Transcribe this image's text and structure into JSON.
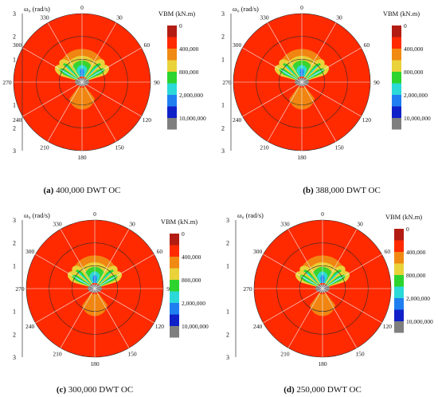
{
  "colors": {
    "band_0": "#b31c12",
    "band_1": "#ff2a00",
    "band_2": "#f08a12",
    "band_3": "#e9d23a",
    "band_4": "#2ed42e",
    "band_5": "#2bd9d9",
    "band_6": "#1f7ff0",
    "band_7": "#1020c8",
    "band_8": "#7f7f7f",
    "ring": "#2a2a2a",
    "spoke": "#f0f0f0"
  },
  "chart_data": [
    {
      "type": "heatmap",
      "subtype": "polar-contour",
      "panel_label": "(a)",
      "title": "400,000 DWT OC",
      "radial_axis_label": "ω₀ (rad/s)",
      "radial_ticks": [
        "1",
        "2",
        "3"
      ],
      "angle_ticks": [
        "0",
        "30",
        "60",
        "90",
        "120",
        "150",
        "180",
        "210",
        "240",
        "270",
        "300",
        "330"
      ],
      "legend_title": "VBM (kN.m)",
      "legend_labels": [
        "0",
        "400,000",
        "800,000",
        "2,000,000",
        "10,000,000"
      ],
      "max_region": {
        "heading_deg": 0,
        "omega_rad_s": [
          0.3,
          1.0
        ]
      }
    },
    {
      "type": "heatmap",
      "subtype": "polar-contour",
      "panel_label": "(b)",
      "title": "388,000 DWT OC",
      "radial_axis_label": "ω₀ (rad/s)",
      "radial_ticks": [
        "1",
        "2",
        "3"
      ],
      "angle_ticks": [
        "0",
        "30",
        "60",
        "90",
        "120",
        "150",
        "180",
        "210",
        "240",
        "270",
        "300",
        "330"
      ],
      "legend_title": "VBM (kN.m)",
      "legend_labels": [
        "0",
        "400,000",
        "800,000",
        "2,000,000",
        "10,000,000"
      ],
      "max_region": {
        "heading_deg": 0,
        "omega_rad_s": [
          0.3,
          1.0
        ]
      }
    },
    {
      "type": "heatmap",
      "subtype": "polar-contour",
      "panel_label": "(c)",
      "title": "300,000 DWT OC",
      "radial_axis_label": "ω₀ (rad/s)",
      "radial_ticks": [
        "1",
        "2",
        "3"
      ],
      "angle_ticks": [
        "0",
        "30",
        "60",
        "90",
        "120",
        "150",
        "180",
        "210",
        "240",
        "270",
        "300",
        "330"
      ],
      "legend_title": "VBM (kN.m)",
      "legend_labels": [
        "0",
        "400,000",
        "800,000",
        "2,000,000",
        "10,000,000"
      ],
      "max_region": {
        "heading_deg": 0,
        "omega_rad_s": [
          0.3,
          1.0
        ]
      }
    },
    {
      "type": "heatmap",
      "subtype": "polar-contour",
      "panel_label": "(d)",
      "title": "250,000 DWT OC",
      "radial_axis_label": "ω₀ (rad/s)",
      "radial_ticks": [
        "1",
        "2",
        "3"
      ],
      "angle_ticks": [
        "0",
        "30",
        "60",
        "90",
        "120",
        "150",
        "180",
        "210",
        "240",
        "270",
        "300",
        "330"
      ],
      "legend_title": "VBM (kN.m)",
      "legend_labels": [
        "0",
        "400,000",
        "800,000",
        "2,000,000",
        "10,000,000"
      ],
      "max_region": {
        "heading_deg": 0,
        "omega_rad_s": [
          0.3,
          1.0
        ]
      }
    }
  ]
}
